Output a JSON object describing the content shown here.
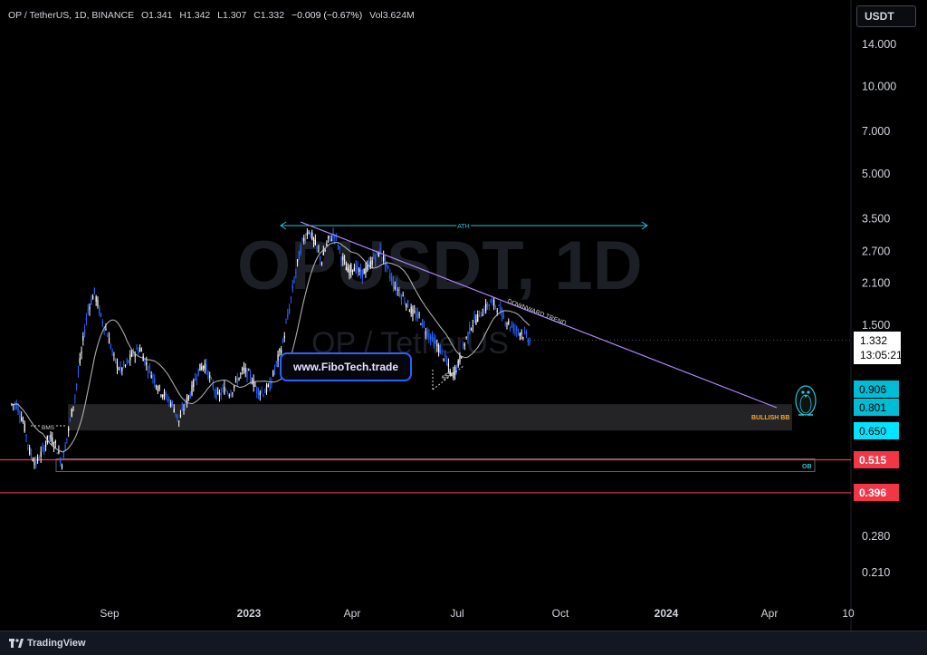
{
  "header": {
    "symbol": "OP / TetherUS, 1D, BINANCE",
    "open": "O1.341",
    "high": "H1.342",
    "low": "L1.307",
    "close": "C1.332",
    "change": "−0.009 (−0.67%)",
    "volume": "Vol3.624M"
  },
  "currency_button": "USDT",
  "watermark": {
    "main": "OPUSDT, 1D",
    "sub": "OP / TetherUS"
  },
  "website_label": "www.FiboTech.trade",
  "annotations": {
    "ath": "ATH",
    "downtrend": "DOWNWARD TREND",
    "bms": "BMS",
    "sss": "$$$",
    "bullish_bb": "BULLISH BB",
    "ob": "OB"
  },
  "current_price": {
    "value": "1.332",
    "countdown": "13:05:21"
  },
  "price_tags": [
    {
      "value": "0.906",
      "color": "#00bcd4"
    },
    {
      "value": "0.801",
      "color": "#00bcd4"
    },
    {
      "value": "0.650",
      "color": "#00e5ff"
    },
    {
      "value": "0.515",
      "color": "#f23645"
    },
    {
      "value": "0.396",
      "color": "#f23645"
    }
  ],
  "footer_brand": "TradingView",
  "chart_data": {
    "type": "candlestick",
    "scale": "log",
    "y_ticks": [
      14.0,
      10.0,
      7.0,
      5.0,
      3.5,
      2.7,
      2.1,
      1.5,
      0.28,
      0.21
    ],
    "y_tick_labels": [
      "14.000",
      "10.000",
      "7.000",
      "5.000",
      "3.500",
      "2.700",
      "2.100",
      "1.500",
      "0.280",
      "0.210"
    ],
    "x_ticks": [
      "Sep",
      "2023",
      "Apr",
      "Jul",
      "Oct",
      "2024",
      "Apr",
      "10"
    ],
    "x_tick_dates": [
      "2022-09",
      "2023-01",
      "2023-04",
      "2023-07",
      "2023-10",
      "2024-01",
      "2024-04",
      "2024-10"
    ],
    "closes": [
      0.8,
      0.7,
      0.55,
      0.5,
      0.55,
      0.62,
      0.58,
      0.5,
      0.65,
      0.85,
      1.2,
      1.7,
      1.95,
      1.6,
      1.4,
      1.15,
      1.05,
      1.1,
      1.2,
      1.25,
      1.1,
      1.0,
      0.9,
      0.85,
      0.8,
      0.7,
      0.8,
      0.9,
      1.05,
      1.1,
      0.95,
      0.85,
      0.9,
      0.88,
      0.97,
      1.05,
      1.0,
      0.9,
      0.88,
      0.92,
      1.1,
      1.3,
      1.7,
      2.3,
      2.9,
      3.2,
      2.85,
      2.5,
      2.95,
      3.1,
      2.6,
      2.3,
      2.4,
      2.25,
      2.35,
      2.55,
      2.7,
      2.4,
      2.1,
      1.95,
      1.8,
      1.65,
      1.6,
      1.45,
      1.35,
      1.25,
      1.15,
      1.0,
      1.1,
      1.3,
      1.5,
      1.6,
      1.7,
      1.8,
      1.75,
      1.6,
      1.5,
      1.45,
      1.4,
      1.33
    ],
    "moving_average": "20-period",
    "levels": [
      {
        "label": "BULLISH BB",
        "from": 0.65,
        "to": 0.801
      },
      {
        "label": "OB",
        "from": 0.46,
        "to": 0.515
      },
      {
        "price": 0.515,
        "color": "#f23645"
      },
      {
        "price": 0.396,
        "color": "#f23645"
      }
    ],
    "trendlines": [
      {
        "label": "DOWNWARD TREND",
        "from_price": 3.35,
        "to_price": 0.85
      },
      {
        "label": "ATH",
        "price": 3.35
      }
    ]
  }
}
